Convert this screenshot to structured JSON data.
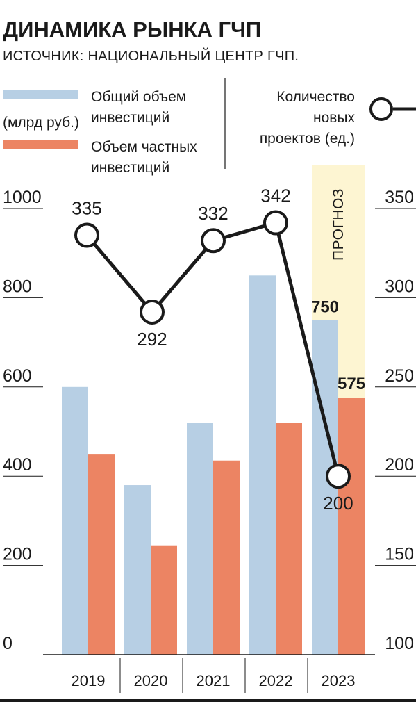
{
  "header": {
    "title": "ДИНАМИКА РЫНКА ГЧП",
    "subtitle": "ИСТОЧНИК: НАЦИОНАЛЬНЫЙ ЦЕНТР ГЧП."
  },
  "legend": {
    "total_line1": "Общий объем",
    "total_line2": "инвестиций",
    "units": "(млрд руб.)",
    "private_line1": "Объем частных",
    "private_line2": "инвестиций",
    "projects_line1": "Количество",
    "projects_line2": "новых",
    "projects_line3": "проектов (ед.)"
  },
  "forecast_label": "ПРОГНОЗ",
  "colors": {
    "total": "#b7cfe4",
    "private": "#ec8463",
    "line": "#1a1a1a",
    "forecast": "#fdf5d2",
    "grid": "#1a1a1a"
  },
  "chart_data": {
    "type": "bar",
    "title": "ДИНАМИКА РЫНКА ГЧП",
    "categories": [
      "2019",
      "2020",
      "2021",
      "2022",
      "2023"
    ],
    "forecast_category": "2023",
    "y_left": {
      "ylim": [
        0,
        1000
      ],
      "ticks": [
        0,
        200,
        400,
        600,
        800,
        1000
      ],
      "tick_labels": [
        "0",
        "200",
        "400",
        "600",
        "800",
        "1000"
      ]
    },
    "y_right": {
      "ylim": [
        100,
        350
      ],
      "ticks": [
        100,
        150,
        200,
        250,
        300,
        350
      ],
      "tick_labels": [
        "100",
        "150",
        "200",
        "250",
        "300",
        "350"
      ]
    },
    "series": [
      {
        "name": "Общий объем инвестиций",
        "type": "bar",
        "axis": "left",
        "values": [
          600,
          380,
          520,
          850,
          750
        ],
        "data_labels": [
          "",
          "",
          "",
          "",
          "750"
        ]
      },
      {
        "name": "Объем частных инвестиций",
        "type": "bar",
        "axis": "left",
        "values": [
          450,
          245,
          435,
          520,
          575
        ],
        "data_labels": [
          "",
          "",
          "",
          "",
          "575"
        ]
      },
      {
        "name": "Количество новых проектов (ед.)",
        "type": "line",
        "axis": "right",
        "values": [
          335,
          292,
          332,
          342,
          200
        ],
        "data_labels": [
          "335",
          "292",
          "332",
          "342",
          "200"
        ]
      }
    ]
  }
}
